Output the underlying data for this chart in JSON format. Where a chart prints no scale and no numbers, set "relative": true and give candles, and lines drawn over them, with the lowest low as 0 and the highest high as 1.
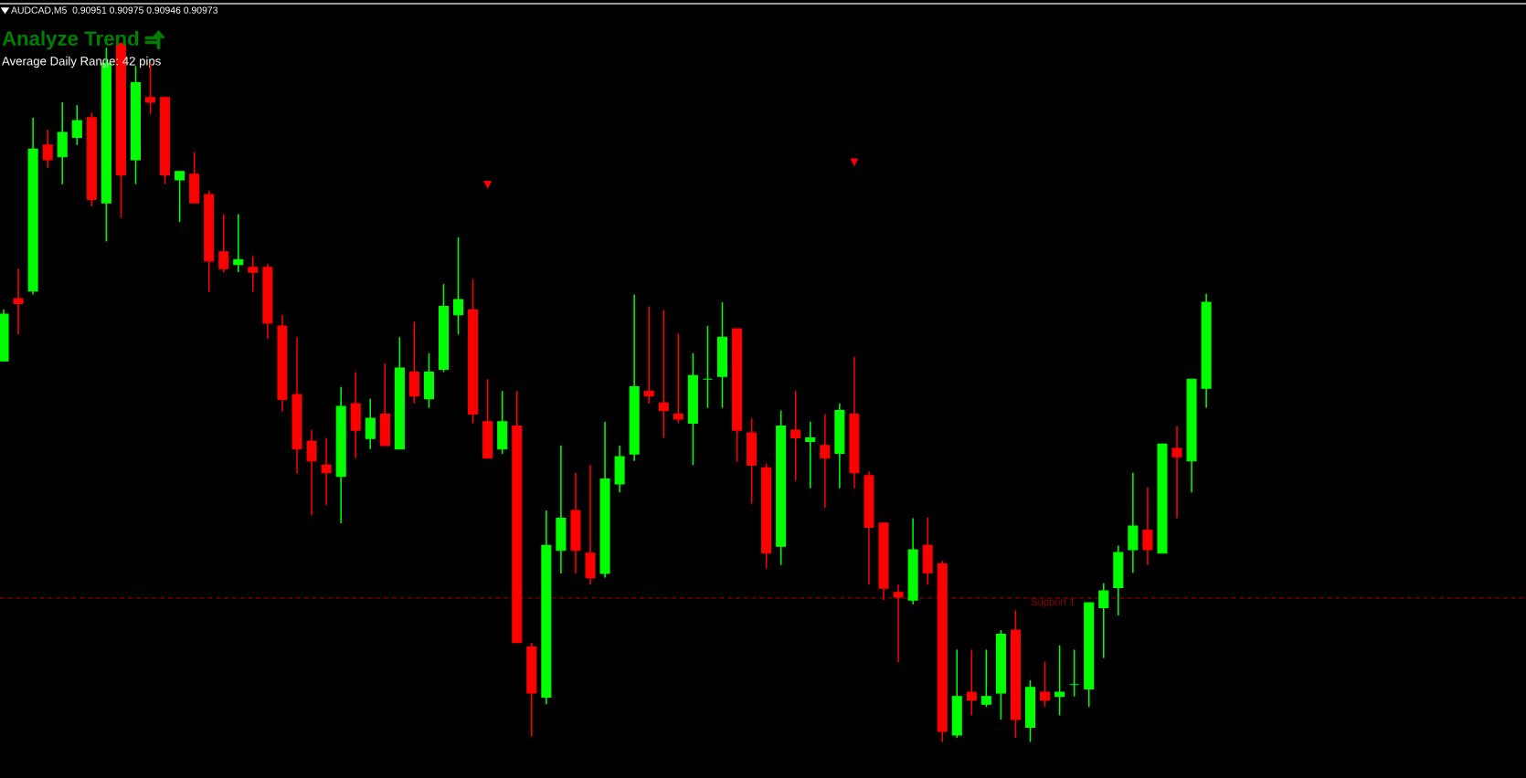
{
  "chart_data": {
    "type": "candlestick",
    "relative": true,
    "title": "Analyze Trend",
    "subtitle": "Average Daily Range: 42 pips",
    "annotations": [
      "AUDCAD,M5  0.90951 0.90975 0.90946 0.90973"
    ],
    "categories": [
      null,
      null,
      null,
      null,
      null,
      null,
      null,
      null,
      null,
      null,
      null,
      null,
      null,
      null,
      null,
      null,
      null,
      null,
      null,
      null,
      null,
      null,
      null,
      null,
      null,
      null,
      null,
      null,
      null,
      null,
      null,
      null,
      null,
      null,
      null,
      null,
      null,
      null,
      null,
      null,
      null,
      null,
      null,
      null,
      null,
      null,
      null,
      null,
      null,
      null,
      null,
      null,
      null,
      null,
      null,
      null,
      null,
      null,
      null,
      null,
      null,
      null,
      null,
      null,
      null,
      null,
      null,
      null,
      null,
      null,
      null,
      null,
      null,
      null,
      null,
      null,
      null,
      null,
      null,
      null,
      null,
      null,
      null
    ],
    "ohlc": [
      [
        0.545,
        0.619,
        0.544,
        0.612
      ],
      [
        0.634,
        0.677,
        0.583,
        0.627
      ],
      [
        0.645,
        0.893,
        0.64,
        0.848
      ],
      [
        0.854,
        0.876,
        0.821,
        0.833
      ],
      [
        0.837,
        0.915,
        0.798,
        0.872
      ],
      [
        0.865,
        0.911,
        0.854,
        0.889
      ],
      [
        0.893,
        0.9,
        0.766,
        0.776
      ],
      [
        0.771,
        0.993,
        0.716,
        0.971
      ],
      [
        0.999,
        1.0,
        0.75,
        0.811
      ],
      [
        0.833,
        0.967,
        0.798,
        0.943
      ],
      [
        0.922,
        0.971,
        0.898,
        0.915
      ],
      [
        0.922,
        0.922,
        0.798,
        0.811
      ],
      [
        0.804,
        0.816,
        0.744,
        0.816
      ],
      [
        0.812,
        0.844,
        0.771,
        0.771
      ],
      [
        0.783,
        0.789,
        0.644,
        0.688
      ],
      [
        0.701,
        0.755,
        0.672,
        0.677
      ],
      [
        0.683,
        0.755,
        0.672,
        0.69
      ],
      [
        0.679,
        0.695,
        0.644,
        0.672
      ],
      [
        0.679,
        0.684,
        0.577,
        0.599
      ],
      [
        0.595,
        0.611,
        0.473,
        0.49
      ],
      [
        0.497,
        0.579,
        0.384,
        0.419
      ],
      [
        0.43,
        0.446,
        0.324,
        0.402
      ],
      [
        0.396,
        0.435,
        0.339,
        0.385
      ],
      [
        0.38,
        0.508,
        0.313,
        0.48
      ],
      [
        0.484,
        0.529,
        0.406,
        0.446
      ],
      [
        0.434,
        0.491,
        0.419,
        0.463
      ],
      [
        0.469,
        0.541,
        0.424,
        0.424
      ],
      [
        0.419,
        0.579,
        0.419,
        0.535
      ],
      [
        0.529,
        0.601,
        0.484,
        0.495
      ],
      [
        0.491,
        0.556,
        0.478,
        0.529
      ],
      [
        0.533,
        0.655,
        0.529,
        0.623
      ],
      [
        0.611,
        0.722,
        0.583,
        0.633
      ],
      [
        0.618,
        0.662,
        0.456,
        0.469
      ],
      [
        0.458,
        0.519,
        0.406,
        0.406
      ],
      [
        0.419,
        0.502,
        0.412,
        0.458
      ],
      [
        0.452,
        0.502,
        0.142,
        0.142
      ],
      [
        0.136,
        0.142,
        0.008,
        0.07
      ],
      [
        0.064,
        0.331,
        0.054,
        0.281
      ],
      [
        0.274,
        0.424,
        0.241,
        0.32
      ],
      [
        0.331,
        0.385,
        0.241,
        0.274
      ],
      [
        0.27,
        0.396,
        0.225,
        0.235
      ],
      [
        0.241,
        0.458,
        0.235,
        0.376
      ],
      [
        0.369,
        0.424,
        0.357,
        0.408
      ],
      [
        0.412,
        0.64,
        0.402,
        0.508
      ],
      [
        0.502,
        0.623,
        0.484,
        0.495
      ],
      [
        0.485,
        0.618,
        0.435,
        0.474
      ],
      [
        0.469,
        0.584,
        0.456,
        0.462
      ],
      [
        0.456,
        0.556,
        0.396,
        0.524
      ],
      [
        0.519,
        0.595,
        0.478,
        0.519
      ],
      [
        0.523,
        0.629,
        0.478,
        0.579
      ],
      [
        0.591,
        0.591,
        0.401,
        0.446
      ],
      [
        0.442,
        0.463,
        0.341,
        0.396
      ],
      [
        0.392,
        0.398,
        0.248,
        0.27
      ],
      [
        0.28,
        0.474,
        0.253,
        0.452
      ],
      [
        0.446,
        0.502,
        0.374,
        0.435
      ],
      [
        0.43,
        0.458,
        0.363,
        0.435
      ],
      [
        0.424,
        0.469,
        0.335,
        0.406
      ],
      [
        0.413,
        0.484,
        0.363,
        0.474
      ],
      [
        0.469,
        0.551,
        0.363,
        0.385
      ],
      [
        0.381,
        0.387,
        0.225,
        0.307
      ],
      [
        0.313,
        0.313,
        0.203,
        0.22
      ],
      [
        0.214,
        0.225,
        0.114,
        0.207
      ],
      [
        0.203,
        0.32,
        0.197,
        0.275
      ],
      [
        0.281,
        0.321,
        0.225,
        0.242
      ],
      [
        0.255,
        0.259,
        0.0,
        0.015
      ],
      [
        0.01,
        0.132,
        0.006,
        0.065
      ],
      [
        0.071,
        0.132,
        0.038,
        0.06
      ],
      [
        0.054,
        0.132,
        0.05,
        0.065
      ],
      [
        0.07,
        0.16,
        0.032,
        0.154
      ],
      [
        0.16,
        0.188,
        0.006,
        0.032
      ],
      [
        0.021,
        0.088,
        0.0,
        0.078
      ],
      [
        0.071,
        0.115,
        0.05,
        0.06
      ],
      [
        0.065,
        0.138,
        0.038,
        0.071
      ],
      [
        0.082,
        0.132,
        0.065,
        0.082
      ],
      [
        0.076,
        0.199,
        0.05,
        0.199
      ],
      [
        0.192,
        0.227,
        0.12,
        0.216
      ],
      [
        0.221,
        0.281,
        0.181,
        0.271
      ],
      [
        0.275,
        0.385,
        0.242,
        0.309
      ],
      [
        0.303,
        0.364,
        0.253,
        0.275
      ],
      [
        0.27,
        0.426,
        0.27,
        0.426
      ],
      [
        0.42,
        0.452,
        0.32,
        0.408
      ],
      [
        0.402,
        0.519,
        0.357,
        0.519
      ],
      [
        0.506,
        0.641,
        0.478,
        0.629
      ]
    ],
    "colors": [
      "#00ff00",
      "#ff0000",
      "#00ff00",
      "#ff0000",
      "#00ff00",
      "#00ff00",
      "#ff0000",
      "#00ff00",
      "#ff0000",
      "#00ff00",
      "#ff0000",
      "#ff0000",
      "#00ff00",
      "#ff0000",
      "#ff0000",
      "#ff0000",
      "#00ff00",
      "#ff0000",
      "#ff0000",
      "#ff0000",
      "#ff0000",
      "#ff0000",
      "#ff0000",
      "#00ff00",
      "#ff0000",
      "#00ff00",
      "#ff0000",
      "#00ff00",
      "#ff0000",
      "#00ff00",
      "#00ff00",
      "#00ff00",
      "#ff0000",
      "#ff0000",
      "#00ff00",
      "#ff0000",
      "#ff0000",
      "#00ff00",
      "#00ff00",
      "#ff0000",
      "#ff0000",
      "#00ff00",
      "#00ff00",
      "#00ff00",
      "#ff0000",
      "#ff0000",
      "#ff0000",
      "#00ff00",
      "#00ff00",
      "#00ff00",
      "#ff0000",
      "#ff0000",
      "#ff0000",
      "#00ff00",
      "#ff0000",
      "#00ff00",
      "#ff0000",
      "#00ff00",
      "#ff0000",
      "#ff0000",
      "#ff0000",
      "#ff0000",
      "#00ff00",
      "#ff0000",
      "#ff0000",
      "#00ff00",
      "#ff0000",
      "#00ff00",
      "#00ff00",
      "#ff0000",
      "#00ff00",
      "#ff0000",
      "#00ff00",
      "#00ff00",
      "#00ff00",
      "#00ff00",
      "#00ff00",
      "#00ff00",
      "#ff0000",
      "#00ff00",
      "#ff0000",
      "#00ff00",
      "#00ff00"
    ],
    "series": [
      {
        "type": "scatter",
        "color": "#ff0000",
        "values": [
          null,
          null,
          null,
          null,
          null,
          null,
          null,
          null,
          null,
          null,
          null,
          null,
          null,
          null,
          null,
          null,
          null,
          null,
          null,
          null,
          null,
          null,
          null,
          null,
          null,
          null,
          null,
          null,
          null,
          null,
          null,
          null,
          null,
          0.797,
          null,
          null,
          null,
          null,
          null,
          null,
          null,
          null,
          null,
          null,
          null,
          null,
          null,
          null,
          null,
          null,
          null,
          null,
          null,
          null,
          null,
          null,
          null,
          null,
          0.829,
          null,
          null,
          null,
          null,
          null,
          null,
          null,
          null,
          null,
          null,
          null,
          null,
          null,
          null,
          null,
          null,
          null,
          null,
          null,
          null,
          null,
          null,
          null,
          null
        ]
      }
    ],
    "ref_lines": [
      {
        "axis": "y",
        "value": 0.206,
        "label": "Support 1",
        "color": "#8b0000",
        "line_style": "dashed"
      }
    ],
    "legend": false
  }
}
